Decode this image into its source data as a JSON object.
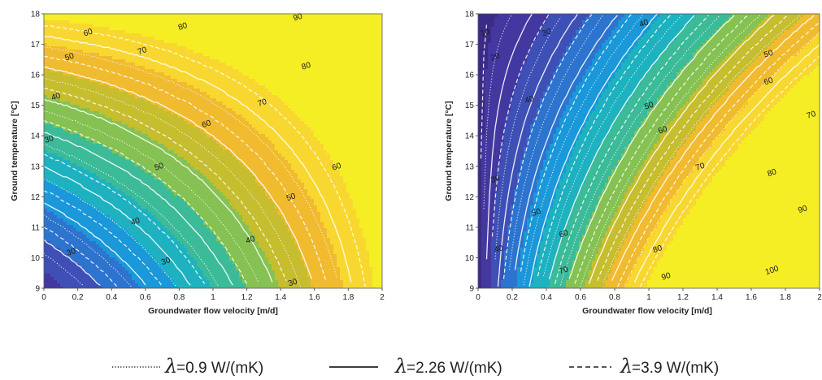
{
  "chart_data": [
    {
      "type": "contour",
      "title": "",
      "xlabel": "Groundwater flow velocity [m/d]",
      "ylabel": "Ground temperature [°C]",
      "xlim": [
        0,
        2
      ],
      "ylim": [
        9,
        18
      ],
      "xticks": [
        "0",
        "0.2",
        "0.4",
        "0.6",
        "0.8",
        "1",
        "1.2",
        "1.4",
        "1.6",
        "1.8",
        "2"
      ],
      "yticks": [
        "9",
        "10",
        "11",
        "12",
        "13",
        "14",
        "15",
        "16",
        "17",
        "18"
      ],
      "levels": [
        30,
        40,
        50,
        60,
        70,
        80,
        90
      ],
      "contour_labels": [
        {
          "text": "90",
          "x": 1.5,
          "y": 17.9
        },
        {
          "text": "80",
          "x": 0.82,
          "y": 17.6
        },
        {
          "text": "80",
          "x": 1.55,
          "y": 16.3
        },
        {
          "text": "70",
          "x": 0.58,
          "y": 16.8
        },
        {
          "text": "70",
          "x": 1.29,
          "y": 15.1
        },
        {
          "text": "60",
          "x": 0.26,
          "y": 17.4
        },
        {
          "text": "60",
          "x": 0.96,
          "y": 14.4
        },
        {
          "text": "60",
          "x": 1.73,
          "y": 13.0
        },
        {
          "text": "50",
          "x": 0.15,
          "y": 16.6
        },
        {
          "text": "50",
          "x": 0.68,
          "y": 13.0
        },
        {
          "text": "50",
          "x": 1.46,
          "y": 12.0
        },
        {
          "text": "40",
          "x": 0.07,
          "y": 15.3
        },
        {
          "text": "40",
          "x": 0.54,
          "y": 11.2
        },
        {
          "text": "40",
          "x": 1.22,
          "y": 10.6
        },
        {
          "text": "30",
          "x": 0.03,
          "y": 13.9
        },
        {
          "text": "30",
          "x": 0.72,
          "y": 9.9
        },
        {
          "text": "30",
          "x": 1.47,
          "y": 9.2
        },
        {
          "text": "30",
          "x": 0.16,
          "y": 10.2
        }
      ]
    },
    {
      "type": "contour",
      "title": "",
      "xlabel": "Groundwater flow velocity [m/d]",
      "ylabel": "Ground temperature [°C]",
      "xlim": [
        0,
        2
      ],
      "ylim": [
        9,
        18
      ],
      "xticks": [
        "0",
        "0.2",
        "0.4",
        "0.6",
        "0.8",
        "1",
        "1.2",
        "1.4",
        "1.6",
        "1.8",
        "2"
      ],
      "yticks": [
        "9",
        "10",
        "11",
        "12",
        "13",
        "14",
        "15",
        "16",
        "17",
        "18"
      ],
      "levels": [
        10,
        20,
        30,
        40,
        50,
        60,
        70,
        80,
        90,
        100
      ],
      "contour_labels": [
        {
          "text": "10",
          "x": 0.04,
          "y": 17.4
        },
        {
          "text": "20",
          "x": 0.1,
          "y": 16.6
        },
        {
          "text": "30",
          "x": 0.4,
          "y": 17.4
        },
        {
          "text": "40",
          "x": 0.97,
          "y": 17.7
        },
        {
          "text": "50",
          "x": 1.7,
          "y": 16.7
        },
        {
          "text": "60",
          "x": 1.7,
          "y": 15.8
        },
        {
          "text": "70",
          "x": 1.95,
          "y": 14.7
        },
        {
          "text": "40",
          "x": 0.3,
          "y": 15.2
        },
        {
          "text": "50",
          "x": 1.0,
          "y": 15.0
        },
        {
          "text": "60",
          "x": 1.08,
          "y": 14.2
        },
        {
          "text": "70",
          "x": 1.3,
          "y": 13.0
        },
        {
          "text": "80",
          "x": 1.72,
          "y": 12.8
        },
        {
          "text": "90",
          "x": 1.9,
          "y": 11.6
        },
        {
          "text": "30",
          "x": 0.1,
          "y": 12.6
        },
        {
          "text": "50",
          "x": 0.34,
          "y": 11.5
        },
        {
          "text": "60",
          "x": 0.5,
          "y": 10.8
        },
        {
          "text": "40",
          "x": 0.12,
          "y": 10.3
        },
        {
          "text": "70",
          "x": 0.5,
          "y": 9.6
        },
        {
          "text": "80",
          "x": 1.05,
          "y": 10.3
        },
        {
          "text": "90",
          "x": 1.1,
          "y": 9.4
        },
        {
          "text": "100",
          "x": 1.72,
          "y": 9.6
        }
      ]
    }
  ],
  "legend": {
    "entries": [
      {
        "symbol": "λ",
        "text": "=0.9 W/(mK)",
        "linestyle": "dotted"
      },
      {
        "symbol": "λ",
        "text": "=2.26 W/(mK)",
        "linestyle": "solid"
      },
      {
        "symbol": "λ",
        "text": "=3.9 W/(mK)",
        "linestyle": "dashed"
      }
    ]
  },
  "colors": {
    "band_colors": [
      "#3c2b86",
      "#4338a0",
      "#3e50b6",
      "#2d74cf",
      "#1a98d9",
      "#1eb2c0",
      "#3cbb99",
      "#86c253",
      "#c6be2e",
      "#f1bb30",
      "#f8d830",
      "#f5ee25"
    ],
    "isoline": "#ffffff",
    "legend_line": "#222222"
  }
}
